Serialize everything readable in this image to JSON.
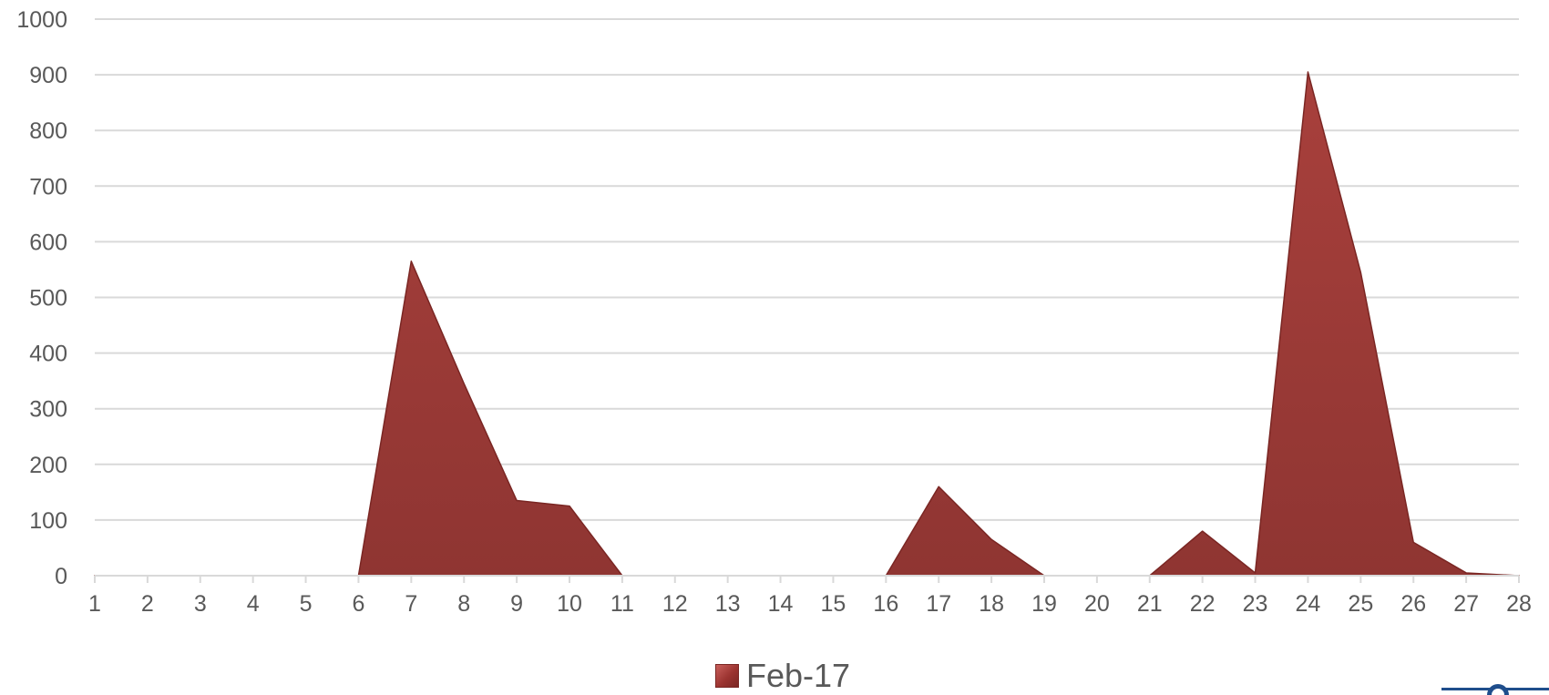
{
  "chart_data": {
    "type": "area",
    "x": [
      1,
      2,
      3,
      4,
      5,
      6,
      7,
      8,
      9,
      10,
      11,
      12,
      13,
      14,
      15,
      16,
      17,
      18,
      19,
      20,
      21,
      22,
      23,
      24,
      25,
      26,
      27,
      28
    ],
    "series": [
      {
        "name": "Feb-17",
        "values": [
          0,
          0,
          0,
          0,
          0,
          0,
          565,
          345,
          135,
          125,
          0,
          0,
          0,
          0,
          0,
          0,
          160,
          65,
          0,
          0,
          0,
          80,
          5,
          905,
          545,
          60,
          5,
          0
        ]
      }
    ],
    "ylim": [
      0,
      1000
    ],
    "yticks": [
      0,
      100,
      200,
      300,
      400,
      500,
      600,
      700,
      800,
      900,
      1000
    ],
    "grid": true,
    "legend_position": "bottom-center",
    "title": "",
    "xlabel": "",
    "ylabel": "",
    "colors": {
      "fill": "#9b3a37",
      "stroke": "#7a2623",
      "grid": "#d9d9d9",
      "text": "#595959"
    }
  },
  "logo": {
    "icon": "seal-logo-icon"
  }
}
